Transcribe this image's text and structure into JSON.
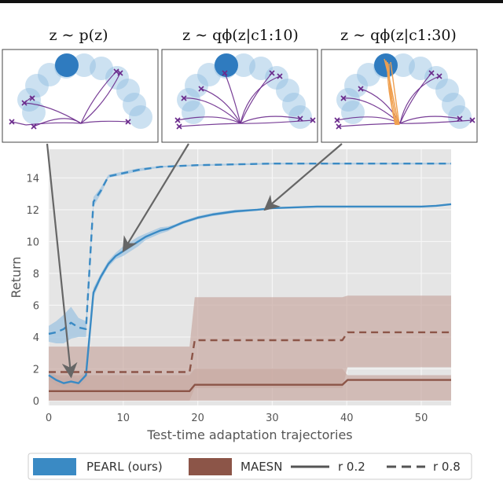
{
  "colors": {
    "pearl": "#3a8ac4",
    "pearl_band": "#9ec3e0",
    "maesn": "#8c5548",
    "maesn_band": "#c9a9a2",
    "plot_bg": "#e5e5e5",
    "grid": "#f6f6f6",
    "trajectory": "#6a2a8c",
    "posterior_sample": "#f0a050",
    "goal_light": "#8ebde0",
    "goal_dark": "#2f7bbf",
    "arrow": "#666666"
  },
  "panels": [
    {
      "title": "z ∼ p(z)",
      "icon": "prior-trajectories-thumbnail"
    },
    {
      "title": "z ∼ qϕ(z|c1:10)",
      "icon": "posterior-10-trajectories-thumbnail"
    },
    {
      "title": "z ∼ qϕ(z|c1:30)",
      "icon": "posterior-30-trajectories-thumbnail"
    }
  ],
  "chart_data": {
    "type": "line",
    "title": "",
    "xlabel": "Test-time adaptation trajectories",
    "ylabel": "Return",
    "xlim": [
      0,
      54
    ],
    "ylim": [
      -0.3,
      15.8
    ],
    "xticks": [
      0,
      10,
      20,
      30,
      40,
      50
    ],
    "yticks": [
      0,
      2,
      4,
      6,
      8,
      10,
      12,
      14
    ],
    "grid": true,
    "legend_position": "bottom",
    "legend": [
      "PEARL (ours)",
      "MAESN",
      "r 0.2",
      "r 0.8"
    ],
    "series": [
      {
        "name": "PEARL (ours)",
        "style": "solid",
        "x": [
          0,
          1,
          2,
          3,
          4,
          5,
          6,
          7,
          8,
          9,
          10,
          11,
          12,
          13,
          14,
          15,
          16,
          17,
          18,
          20,
          22,
          25,
          28,
          30,
          33,
          36,
          40,
          45,
          50,
          52,
          54
        ],
        "y": [
          1.6,
          1.3,
          1.1,
          1.2,
          1.1,
          1.6,
          6.8,
          7.8,
          8.6,
          9.1,
          9.4,
          9.7,
          10.0,
          10.3,
          10.5,
          10.7,
          10.8,
          11.0,
          11.2,
          11.5,
          11.7,
          11.9,
          12.0,
          12.1,
          12.15,
          12.2,
          12.2,
          12.2,
          12.2,
          12.25,
          12.35
        ],
        "band": [
          0.3,
          0.3,
          0.3,
          0.4,
          0.3,
          0.3,
          0.3,
          0.2,
          0.2,
          0.2,
          0.3,
          0.3,
          0.3,
          0.2,
          0.2,
          0.2,
          0.15,
          0.1,
          0.1,
          0.1,
          0.1,
          0.1,
          0.05,
          0.05,
          0.05,
          0.05,
          0.05,
          0.05,
          0.05,
          0.05,
          0.05
        ]
      },
      {
        "name": "PEARL (ours)",
        "style": "dashed",
        "x": [
          0,
          1,
          2,
          3,
          4,
          5,
          6,
          7,
          8,
          9,
          10,
          12,
          15,
          20,
          30,
          40,
          50,
          54
        ],
        "y": [
          4.2,
          4.3,
          4.5,
          4.9,
          4.6,
          4.5,
          12.5,
          13.2,
          14.1,
          14.2,
          14.3,
          14.5,
          14.7,
          14.8,
          14.9,
          14.9,
          14.9,
          14.9
        ],
        "band": [
          0.5,
          0.7,
          0.9,
          1.0,
          0.6,
          0.5,
          0.3,
          0.2,
          0.1,
          0.1,
          0.1,
          0.1,
          0.05,
          0.05,
          0.05,
          0.05,
          0.05,
          0.05
        ]
      },
      {
        "name": "MAESN",
        "style": "solid",
        "x": [
          0,
          18.9,
          19.6,
          39.4,
          40.1,
          54
        ],
        "y": [
          0.6,
          0.6,
          1.0,
          1.0,
          1.3,
          1.3
        ],
        "band_lower": [
          0.0,
          0.0,
          0.0,
          0.0,
          0.0,
          0.0
        ],
        "band_upper": [
          1.6,
          1.6,
          2.0,
          2.0,
          1.6,
          1.6
        ]
      },
      {
        "name": "MAESN",
        "style": "dashed",
        "x": [
          0,
          18.9,
          19.6,
          39.4,
          40.1,
          54
        ],
        "y": [
          1.8,
          1.8,
          3.8,
          3.8,
          4.3,
          4.3
        ],
        "band_lower": [
          0.0,
          0.0,
          0.8,
          0.8,
          2.1,
          2.1
        ],
        "band_upper": [
          3.4,
          3.4,
          6.5,
          6.5,
          6.6,
          6.6
        ]
      }
    ],
    "annotations": [
      {
        "from_panel": 0,
        "to": [
          3.0,
          1.5
        ]
      },
      {
        "from_panel": 1,
        "to": [
          10.0,
          9.4
        ]
      },
      {
        "from_panel": 2,
        "to": [
          29.0,
          12.0
        ]
      }
    ]
  }
}
